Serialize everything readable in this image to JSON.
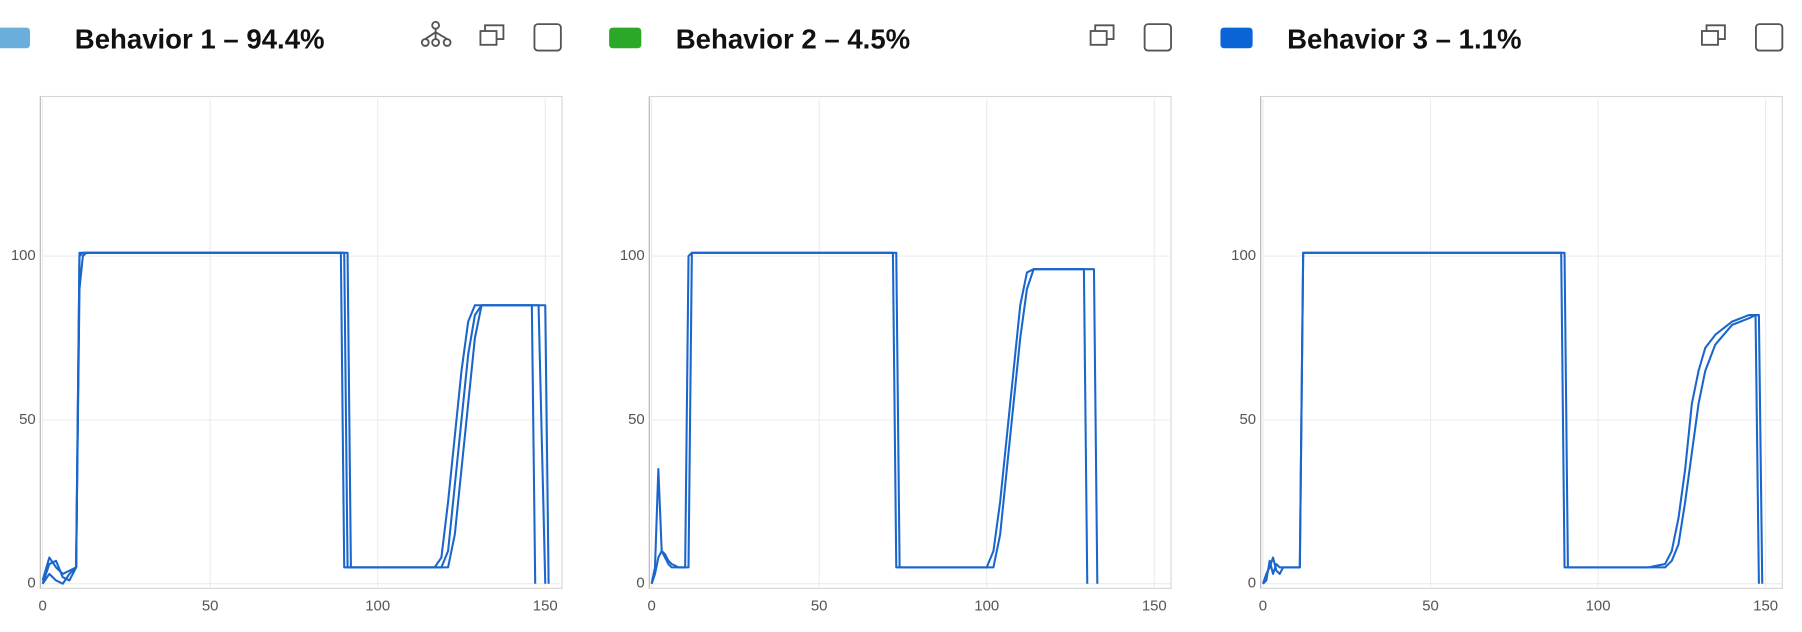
{
  "chart_data": [
    {
      "type": "line",
      "title": "Behavior 1 – 94.4%",
      "color": "#6aaedc",
      "xlim": [
        0,
        155
      ],
      "ylim": [
        0,
        148
      ],
      "xticks": [
        0,
        50,
        100,
        150
      ],
      "yticks": [
        0,
        50,
        100
      ],
      "grid": true,
      "x": [
        0,
        2,
        4,
        6,
        8,
        10,
        11,
        12,
        13,
        88,
        89,
        90,
        91,
        92,
        117,
        119,
        121,
        123,
        125,
        127,
        129,
        131,
        133,
        135,
        146,
        147,
        148,
        150,
        151
      ],
      "series": [
        {
          "color": "#1a66cc",
          "values": [
            1,
            8,
            5,
            3,
            4,
            5,
            90,
            100,
            101,
            101,
            101,
            5,
            5,
            5,
            5,
            8,
            25,
            45,
            65,
            80,
            85,
            85,
            85,
            85,
            85,
            0,
            null,
            null,
            null
          ]
        },
        {
          "color": "#1a66cc",
          "values": [
            0,
            6,
            7,
            2,
            1,
            5,
            101,
            101,
            101,
            101,
            101,
            101,
            5,
            5,
            5,
            5,
            10,
            30,
            50,
            70,
            82,
            85,
            85,
            85,
            85,
            85,
            85,
            85,
            0
          ]
        },
        {
          "color": "#1a66cc",
          "values": [
            0,
            3,
            1,
            0,
            3,
            5,
            100,
            101,
            101,
            101,
            101,
            101,
            101,
            5,
            5,
            5,
            5,
            15,
            35,
            55,
            75,
            85,
            85,
            85,
            85,
            85,
            85,
            0,
            null
          ]
        }
      ]
    },
    {
      "type": "line",
      "title": "Behavior 2 – 4.5%",
      "color": "#2ca829",
      "xlim": [
        0,
        155
      ],
      "ylim": [
        0,
        148
      ],
      "xticks": [
        0,
        50,
        100,
        150
      ],
      "yticks": [
        0,
        50,
        100
      ],
      "grid": true,
      "x": [
        0,
        1,
        2,
        3,
        4,
        5,
        6,
        8,
        10,
        11,
        12,
        71,
        72,
        73,
        74,
        100,
        102,
        104,
        106,
        108,
        110,
        112,
        114,
        129,
        130,
        131,
        132,
        133
      ],
      "series": [
        {
          "color": "#1a66cc",
          "values": [
            0,
            5,
            35,
            10,
            8,
            6,
            5,
            5,
            5,
            100,
            101,
            101,
            101,
            5,
            5,
            5,
            10,
            25,
            45,
            65,
            85,
            95,
            96,
            96,
            0,
            null,
            null,
            null
          ]
        },
        {
          "color": "#1a66cc",
          "values": [
            0,
            3,
            8,
            10,
            9,
            7,
            6,
            5,
            5,
            5,
            101,
            101,
            101,
            101,
            5,
            5,
            5,
            15,
            35,
            55,
            75,
            90,
            96,
            96,
            96,
            96,
            96,
            0
          ]
        }
      ]
    },
    {
      "type": "line",
      "title": "Behavior 3 – 1.1%",
      "color": "#0b64d6",
      "xlim": [
        0,
        155
      ],
      "ylim": [
        0,
        148
      ],
      "xticks": [
        0,
        50,
        100,
        150
      ],
      "yticks": [
        0,
        50,
        100
      ],
      "grid": true,
      "x": [
        0,
        1,
        2,
        3,
        4,
        5,
        6,
        8,
        11,
        12,
        89,
        90,
        91,
        115,
        120,
        122,
        124,
        126,
        128,
        130,
        132,
        135,
        140,
        145,
        147,
        148,
        149,
        150
      ],
      "series": [
        {
          "color": "#1a66cc",
          "values": [
            0,
            3,
            5,
            8,
            4,
            3,
            5,
            5,
            5,
            101,
            101,
            101,
            5,
            5,
            6,
            10,
            20,
            35,
            55,
            65,
            72,
            76,
            80,
            82,
            82,
            0,
            null,
            null
          ]
        },
        {
          "color": "#1a66cc",
          "values": [
            0,
            1,
            7,
            3,
            6,
            5,
            5,
            5,
            5,
            101,
            101,
            5,
            5,
            5,
            5,
            7,
            12,
            25,
            40,
            55,
            65,
            73,
            79,
            81,
            82,
            82,
            0,
            null
          ]
        }
      ]
    }
  ]
}
